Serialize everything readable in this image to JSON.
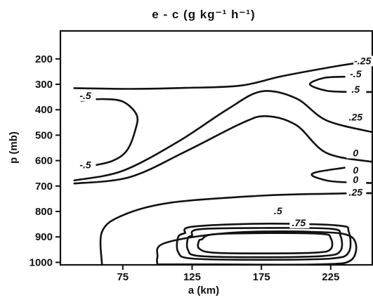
{
  "chart_data": {
    "type": "contour",
    "title": "e - c (g kg⁻¹ h⁻¹)",
    "xlabel": "a (km)",
    "ylabel": "p (mb)",
    "xticks": [
      "75",
      "125",
      "175",
      "225"
    ],
    "yticks": [
      "200",
      "300",
      "400",
      "500",
      "600",
      "700",
      "800",
      "900",
      "1000"
    ],
    "xlim": [
      30,
      255
    ],
    "ylim": [
      1010,
      90
    ],
    "contours": [
      {
        "label": "-.25",
        "points": [
          [
            40,
            315
          ],
          [
            80,
            318
          ],
          [
            120,
            314
          ],
          [
            160,
            305
          ],
          [
            190,
            268
          ],
          [
            230,
            228
          ],
          [
            255,
            208
          ]
        ]
      },
      {
        "label": "-.5",
        "points": [
          [
            45,
            365
          ],
          [
            60,
            358
          ],
          [
            75,
            368
          ],
          [
            85,
            420
          ],
          [
            84,
            480
          ],
          [
            78,
            560
          ],
          [
            68,
            600
          ],
          [
            55,
            618
          ],
          [
            45,
            622
          ]
        ]
      },
      {
        "label": "-.25",
        "points": [
          [
            40,
            678
          ],
          [
            75,
            640
          ],
          [
            115,
            525
          ],
          [
            150,
            400
          ],
          [
            175,
            328
          ],
          [
            200,
            355
          ],
          [
            222,
            442
          ],
          [
            255,
            488
          ]
        ]
      },
      {
        "label": "0",
        "points": [
          [
            40,
            690
          ],
          [
            80,
            665
          ],
          [
            120,
            565
          ],
          [
            160,
            455
          ],
          [
            178,
            425
          ],
          [
            200,
            460
          ],
          [
            222,
            570
          ],
          [
            255,
            605
          ]
        ]
      },
      {
        "label": "-.5",
        "points": [
          [
            235,
            270
          ],
          [
            220,
            275
          ],
          [
            210,
            300
          ],
          [
            222,
            325
          ],
          [
            240,
            330
          ],
          [
            255,
            330
          ]
        ]
      },
      {
        "label": "0",
        "points": [
          [
            235,
            628
          ],
          [
            215,
            645
          ],
          [
            212,
            660
          ],
          [
            224,
            680
          ],
          [
            240,
            686
          ],
          [
            255,
            688
          ]
        ]
      },
      {
        "label": ".25",
        "points": [
          [
            60,
            1010
          ],
          [
            60,
            880
          ],
          [
            75,
            815
          ],
          [
            110,
            765
          ],
          [
            175,
            738
          ],
          [
            225,
            730
          ],
          [
            255,
            728
          ]
        ]
      },
      {
        "label": ".5",
        "points": [
          [
            100,
            1010
          ],
          [
            100,
            980
          ],
          [
            105,
            925
          ],
          [
            150,
            885
          ],
          [
            210,
            880
          ],
          [
            240,
            900
          ],
          [
            240,
            990
          ],
          [
            215,
            1008
          ],
          [
            140,
            1008
          ],
          [
            100,
            1008
          ]
        ]
      },
      {
        "label": ".75",
        "points": [
          [
            120,
            885
          ],
          [
            125,
            860
          ],
          [
            175,
            848
          ],
          [
            230,
            855
          ],
          [
            238,
            880
          ],
          [
            238,
            960
          ],
          [
            225,
            985
          ],
          [
            175,
            990
          ],
          [
            125,
            985
          ],
          [
            115,
            960
          ],
          [
            115,
            900
          ],
          [
            120,
            885
          ]
        ]
      },
      {
        "label": "",
        "points": [
          [
            125,
            895
          ],
          [
            130,
            870
          ],
          [
            175,
            865
          ],
          [
            225,
            868
          ],
          [
            232,
            895
          ],
          [
            232,
            955
          ],
          [
            220,
            975
          ],
          [
            175,
            980
          ],
          [
            130,
            975
          ],
          [
            122,
            950
          ],
          [
            122,
            905
          ],
          [
            125,
            895
          ]
        ]
      },
      {
        "label": "",
        "points": [
          [
            132,
            910
          ],
          [
            140,
            890
          ],
          [
            175,
            885
          ],
          [
            218,
            888
          ],
          [
            225,
            905
          ],
          [
            225,
            948
          ],
          [
            214,
            962
          ],
          [
            175,
            965
          ],
          [
            140,
            962
          ],
          [
            130,
            945
          ],
          [
            130,
            915
          ],
          [
            132,
            910
          ]
        ]
      }
    ],
    "contour_labels": [
      {
        "text": "-.25",
        "x": 248,
        "y": 218
      },
      {
        "text": "-.5",
        "x": 243,
        "y": 270
      },
      {
        "text": ".5",
        "x": 243,
        "y": 330
      },
      {
        "text": "-.5",
        "x": 48,
        "y": 355
      },
      {
        "text": ".25",
        "x": 243,
        "y": 440
      },
      {
        "text": "0",
        "x": 243,
        "y": 580
      },
      {
        "text": "-.5",
        "x": 48,
        "y": 627
      },
      {
        "text": "0",
        "x": 243,
        "y": 648
      },
      {
        "text": "0",
        "x": 243,
        "y": 685
      },
      {
        "text": ".25",
        "x": 243,
        "y": 735
      },
      {
        "text": ".5",
        "x": 187,
        "y": 808
      },
      {
        "text": ".75",
        "x": 202,
        "y": 855
      }
    ],
    "grid": false,
    "legend": "none"
  }
}
